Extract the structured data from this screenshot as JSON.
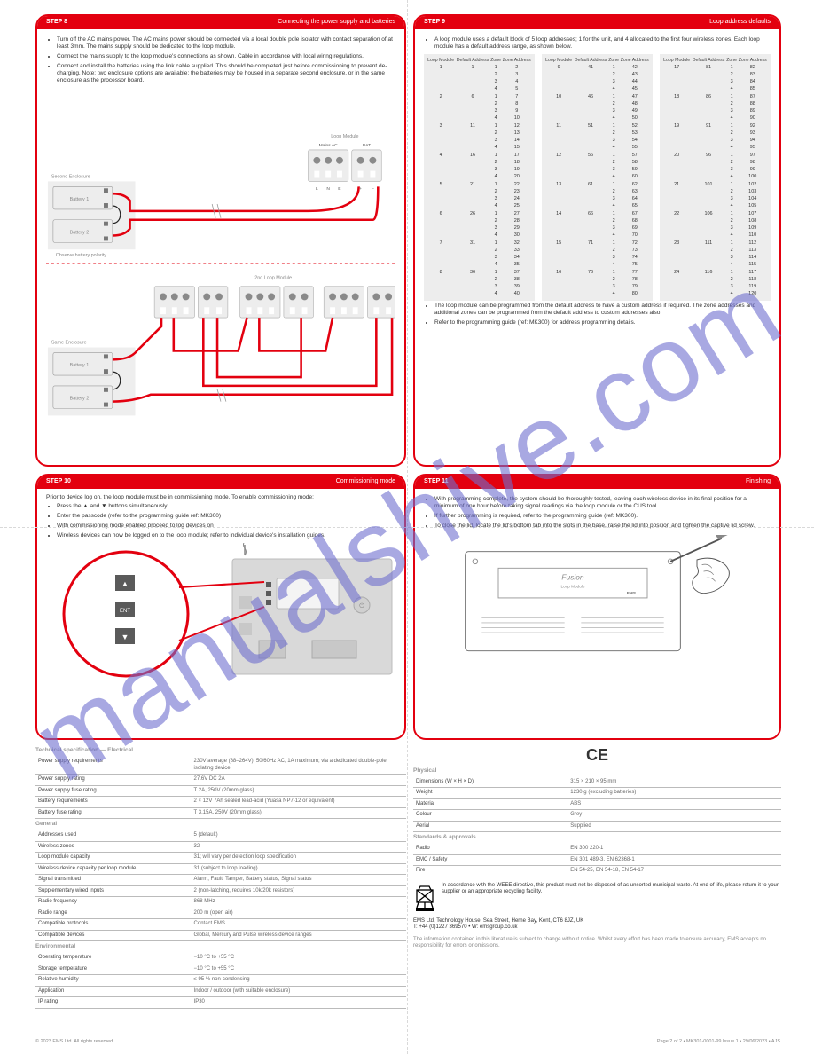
{
  "colors": {
    "brand_red": "#e3000f",
    "light_grey": "#ededed",
    "mid_grey": "#bdbdbd",
    "dash": "#d9d9d9",
    "watermark": "#6f6fcf"
  },
  "watermark": "manualshive.com",
  "panel1": {
    "step": "STEP 8",
    "title": "Connecting the power supply and batteries",
    "bullets": [
      "Turn off the AC mains power. The AC mains power should be connected via a local double pole isolator with contact separation of at least 3mm. The mains supply should be dedicated to the loop module.",
      "Connect the mains supply to the loop module's connections as shown. Cable in accordance with local wiring regulations.",
      "Connect and install the batteries using the link cable supplied. This should be completed just before commissioning to prevent de-charging. Note: two enclosure options are available; the batteries may be housed in a separate second enclosure, or in the same enclosure as the processor board."
    ],
    "labels": {
      "second_enc": "Second Enclosure",
      "same_enc": "Same Enclosure",
      "batt1": "Battery 1",
      "batt2": "Battery 2",
      "obs": "Observe battery polarity",
      "mains": "Mains AC",
      "bat": "BAT",
      "L": "L",
      "N": "N",
      "E": "E",
      "plus": "+",
      "minus": "–",
      "loop_module": "Loop Module",
      "intermediate": "2nd Loop Module"
    }
  },
  "panel2": {
    "step": "STEP 9",
    "title": "Loop address defaults",
    "bullets_top": [
      "A loop module uses a default block of 5 loop addresses; 1 for the unit, and 4 allocated to the first four wireless zones. Each loop module has a default address range, as shown below."
    ],
    "columns": [
      "Loop Module",
      "Default Address",
      "Zone",
      "Zone Address"
    ],
    "rows": [
      [
        "1",
        "1",
        "1",
        "2"
      ],
      [
        "",
        "",
        "2",
        "3"
      ],
      [
        "",
        "",
        "3",
        "4"
      ],
      [
        "",
        "",
        "4",
        "5"
      ],
      [
        "2",
        "6",
        "1",
        "7"
      ],
      [
        "",
        "",
        "2",
        "8"
      ],
      [
        "",
        "",
        "3",
        "9"
      ],
      [
        "",
        "",
        "4",
        "10"
      ],
      [
        "3",
        "11",
        "1",
        "12"
      ],
      [
        "",
        "",
        "2",
        "13"
      ],
      [
        "",
        "",
        "3",
        "14"
      ],
      [
        "",
        "",
        "4",
        "15"
      ],
      [
        "4",
        "16",
        "1",
        "17"
      ],
      [
        "",
        "",
        "2",
        "18"
      ],
      [
        "",
        "",
        "3",
        "19"
      ],
      [
        "",
        "",
        "4",
        "20"
      ],
      [
        "5",
        "21",
        "1",
        "22"
      ],
      [
        "",
        "",
        "2",
        "23"
      ],
      [
        "",
        "",
        "3",
        "24"
      ],
      [
        "",
        "",
        "4",
        "25"
      ],
      [
        "6",
        "26",
        "1",
        "27"
      ],
      [
        "",
        "",
        "2",
        "28"
      ],
      [
        "",
        "",
        "3",
        "29"
      ],
      [
        "",
        "",
        "4",
        "30"
      ],
      [
        "7",
        "31",
        "1",
        "32"
      ],
      [
        "",
        "",
        "2",
        "33"
      ],
      [
        "",
        "",
        "3",
        "34"
      ],
      [
        "",
        "",
        "4",
        "35"
      ],
      [
        "8",
        "36",
        "1",
        "37"
      ],
      [
        "",
        "",
        "2",
        "38"
      ],
      [
        "",
        "",
        "3",
        "39"
      ],
      [
        "",
        "",
        "4",
        "40"
      ],
      [
        "9",
        "41",
        "1",
        "42"
      ],
      [
        "",
        "",
        "2",
        "43"
      ],
      [
        "",
        "",
        "3",
        "44"
      ],
      [
        "",
        "",
        "4",
        "45"
      ],
      [
        "10",
        "46",
        "1",
        "47"
      ],
      [
        "",
        "",
        "2",
        "48"
      ],
      [
        "",
        "",
        "3",
        "49"
      ],
      [
        "",
        "",
        "4",
        "50"
      ],
      [
        "11",
        "51",
        "1",
        "52"
      ],
      [
        "",
        "",
        "2",
        "53"
      ],
      [
        "",
        "",
        "3",
        "54"
      ],
      [
        "",
        "",
        "4",
        "55"
      ],
      [
        "12",
        "56",
        "1",
        "57"
      ],
      [
        "",
        "",
        "2",
        "58"
      ],
      [
        "",
        "",
        "3",
        "59"
      ],
      [
        "",
        "",
        "4",
        "60"
      ],
      [
        "13",
        "61",
        "1",
        "62"
      ],
      [
        "",
        "",
        "2",
        "63"
      ],
      [
        "",
        "",
        "3",
        "64"
      ],
      [
        "",
        "",
        "4",
        "65"
      ],
      [
        "14",
        "66",
        "1",
        "67"
      ],
      [
        "",
        "",
        "2",
        "68"
      ],
      [
        "",
        "",
        "3",
        "69"
      ],
      [
        "",
        "",
        "4",
        "70"
      ],
      [
        "15",
        "71",
        "1",
        "72"
      ],
      [
        "",
        "",
        "2",
        "73"
      ],
      [
        "",
        "",
        "3",
        "74"
      ],
      [
        "",
        "",
        "4",
        "75"
      ],
      [
        "16",
        "76",
        "1",
        "77"
      ],
      [
        "",
        "",
        "2",
        "78"
      ],
      [
        "",
        "",
        "3",
        "79"
      ],
      [
        "",
        "",
        "4",
        "80"
      ],
      [
        "17",
        "81",
        "1",
        "82"
      ],
      [
        "",
        "",
        "2",
        "83"
      ],
      [
        "",
        "",
        "3",
        "84"
      ],
      [
        "",
        "",
        "4",
        "85"
      ],
      [
        "18",
        "86",
        "1",
        "87"
      ],
      [
        "",
        "",
        "2",
        "88"
      ],
      [
        "",
        "",
        "3",
        "89"
      ],
      [
        "",
        "",
        "4",
        "90"
      ],
      [
        "19",
        "91",
        "1",
        "92"
      ],
      [
        "",
        "",
        "2",
        "93"
      ],
      [
        "",
        "",
        "3",
        "94"
      ],
      [
        "",
        "",
        "4",
        "95"
      ],
      [
        "20",
        "96",
        "1",
        "97"
      ],
      [
        "",
        "",
        "2",
        "98"
      ],
      [
        "",
        "",
        "3",
        "99"
      ],
      [
        "",
        "",
        "4",
        "100"
      ],
      [
        "21",
        "101",
        "1",
        "102"
      ],
      [
        "",
        "",
        "2",
        "103"
      ],
      [
        "",
        "",
        "3",
        "104"
      ],
      [
        "",
        "",
        "4",
        "105"
      ],
      [
        "22",
        "106",
        "1",
        "107"
      ],
      [
        "",
        "",
        "2",
        "108"
      ],
      [
        "",
        "",
        "3",
        "109"
      ],
      [
        "",
        "",
        "4",
        "110"
      ],
      [
        "23",
        "111",
        "1",
        "112"
      ],
      [
        "",
        "",
        "2",
        "113"
      ],
      [
        "",
        "",
        "3",
        "114"
      ],
      [
        "",
        "",
        "4",
        "115"
      ],
      [
        "24",
        "116",
        "1",
        "117"
      ],
      [
        "",
        "",
        "2",
        "118"
      ],
      [
        "",
        "",
        "3",
        "119"
      ],
      [
        "",
        "",
        "4",
        "120"
      ]
    ],
    "bullets_bot": [
      "The loop module can be programmed from the default address to have a custom address if required. The zone addresses and additional zones can be programmed from the default address to custom addresses also.",
      "Refer to the programming guide (ref: MK300) for address programming details."
    ]
  },
  "panel3": {
    "step": "STEP 10",
    "title": "Commissioning mode",
    "intro": "Prior to device log on, the loop module must be in commissioning mode. To enable commissioning mode:",
    "bullets": [
      "Press the ▲ and ▼ buttons simultaneously",
      "Enter the passcode (refer to the programming guide ref: MK300)",
      "With commissioning mode enabled proceed to log devices on",
      "Wireless devices can now be logged on to the loop module; refer to individual device's installation guides."
    ],
    "btn_up": "▲",
    "btn_ent": "ENT",
    "btn_dn": "▼"
  },
  "panel4": {
    "step": "STEP 11",
    "title": "Finishing",
    "bullets": [
      "With programming complete, the system should be thoroughly tested, leaving each wireless device in its final position for a minimum of one hour before taking signal readings via the loop module or the CUS tool.",
      "If further programming is required, refer to the programming guide (ref: MK300).",
      "To close the lid, locate the lid's bottom tab into the slots in the base, raise the lid into position and tighten the captive lid screw."
    ],
    "device_label_1": "Fusion",
    "device_label_2": "Loop Module",
    "device_brand": "EMS"
  },
  "spec_left": {
    "h_elec": "Technical specification — Electrical",
    "rows_elec": [
      [
        "Power supply requirements",
        "230V average (88–264V), 50/60Hz AC, 1A maximum; via a dedicated double-pole isolating device"
      ],
      [
        "Power supply rating",
        "27.6V DC 2A"
      ],
      [
        "Power supply fuse rating",
        "T 2A, 250V (20mm glass)"
      ],
      [
        "Battery requirements",
        "2 × 12V 7Ah sealed lead-acid (Yuasa NP7-12 or equivalent)"
      ],
      [
        "Battery fuse rating",
        "T 3.15A, 250V (20mm glass)"
      ]
    ],
    "h_gen": "General",
    "rows_gen": [
      [
        "Addresses used",
        "5 (default)"
      ],
      [
        "Wireless zones",
        "32"
      ],
      [
        "Loop module capacity",
        "31; will vary per detection loop specification"
      ],
      [
        "Wireless device capacity per loop module",
        "31 (subject to loop loading)"
      ],
      [
        "Signal transmitted",
        "Alarm, Fault, Tamper, Battery status, Signal status"
      ],
      [
        "Supplementary wired inputs",
        "2 (non-latching, requires 10k/20k resistors)"
      ],
      [
        "Radio frequency",
        "868 MHz"
      ],
      [
        "Radio range",
        "200 m (open air)"
      ],
      [
        "Compatible protocols",
        "Contact EMS"
      ],
      [
        "Compatible devices",
        "Global, Mercury and Pulse wireless device ranges"
      ]
    ],
    "h_env": "Environmental",
    "rows_env": [
      [
        "Operating temperature",
        "−10 °C to +55 °C"
      ],
      [
        "Storage temperature",
        "−10 °C to +55 °C"
      ],
      [
        "Relative humidity",
        "≤ 95 % non-condensing"
      ],
      [
        "Application",
        "Indoor / outdoor (with suitable enclosure)"
      ],
      [
        "IP rating",
        "IP30"
      ]
    ]
  },
  "spec_right": {
    "h_phys": "Physical",
    "ce_text": "CE",
    "rows_phys": [
      [
        "Dimensions (W × H × D)",
        "315 × 210 × 95 mm"
      ],
      [
        "Weight",
        "1230 g (excluding batteries)"
      ],
      [
        "Material",
        "ABS"
      ],
      [
        "Colour",
        "Grey"
      ],
      [
        "Aerial",
        "Supplied"
      ]
    ],
    "h_stds": "Standards & approvals",
    "rows_stds": [
      [
        "Radio",
        "EN 300 220-1"
      ],
      [
        "EMC / Safety",
        "EN 301 489-3, EN 62368-1"
      ],
      [
        "Fire",
        "EN 54-25, EN 54-18, EN 54-17"
      ]
    ],
    "weee": "In accordance with the WEEE directive, this product must not be disposed of as unsorted municipal waste. At end of life, please return it to your supplier or an appropriate recycling facility.",
    "mfr1": "EMS Ltd, Technology House, Sea Street, Herne Bay, Kent, CT6 8JZ, UK",
    "mfr2": "T: +44 (0)1227 369570  •  W: emsgroup.co.uk",
    "disclaimer": "The information contained in this literature is subject to change without notice. Whilst every effort has been made to ensure accuracy, EMS accepts no responsibility for errors or omissions."
  },
  "footer": {
    "left": "© 2023 EMS Ltd. All rights reserved.",
    "right": "Page 2 of 2  •  MK301-0001-99 Issue 1  •  29/06/2023  •  AJS"
  }
}
